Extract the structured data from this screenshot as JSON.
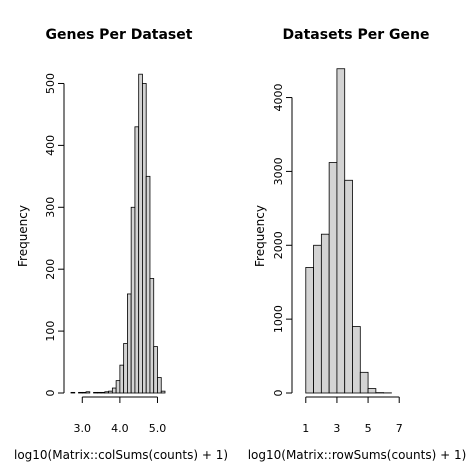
{
  "chart_data": [
    {
      "type": "bar",
      "title": "Genes Per Dataset",
      "xlabel": "log10(Matrix::colSums(counts) + 1)",
      "ylabel": "Frequency",
      "xlim": [
        2.7,
        5.2
      ],
      "ylim": [
        0,
        525
      ],
      "x_ticks": [
        "3.0",
        "4.0",
        "5.0"
      ],
      "y_ticks": [
        "0",
        "100",
        "200",
        "300",
        "400",
        "500"
      ],
      "bin_width": 0.1,
      "bins": [
        {
          "start": 2.7,
          "count": 1
        },
        {
          "start": 2.8,
          "count": 0
        },
        {
          "start": 2.9,
          "count": 1
        },
        {
          "start": 3.0,
          "count": 1
        },
        {
          "start": 3.1,
          "count": 2
        },
        {
          "start": 3.2,
          "count": 0
        },
        {
          "start": 3.3,
          "count": 1
        },
        {
          "start": 3.4,
          "count": 1
        },
        {
          "start": 3.5,
          "count": 1
        },
        {
          "start": 3.6,
          "count": 2
        },
        {
          "start": 3.7,
          "count": 3
        },
        {
          "start": 3.8,
          "count": 8
        },
        {
          "start": 3.9,
          "count": 20
        },
        {
          "start": 4.0,
          "count": 45
        },
        {
          "start": 4.1,
          "count": 80
        },
        {
          "start": 4.2,
          "count": 160
        },
        {
          "start": 4.3,
          "count": 300
        },
        {
          "start": 4.4,
          "count": 430
        },
        {
          "start": 4.5,
          "count": 515
        },
        {
          "start": 4.6,
          "count": 500
        },
        {
          "start": 4.7,
          "count": 350
        },
        {
          "start": 4.8,
          "count": 185
        },
        {
          "start": 4.9,
          "count": 75
        },
        {
          "start": 5.0,
          "count": 25
        },
        {
          "start": 5.1,
          "count": 3
        }
      ]
    },
    {
      "type": "bar",
      "title": "Datasets Per Gene",
      "xlabel": "log10(Matrix::rowSums(counts) + 1)",
      "ylabel": "Frequency",
      "xlim": [
        0.5,
        7.5
      ],
      "ylim": [
        0,
        4400
      ],
      "x_ticks": [
        "1",
        "3",
        "5",
        "7"
      ],
      "y_ticks": [
        "0",
        "1000",
        "2000",
        "3000",
        "4000"
      ],
      "bin_width": 0.5,
      "bins": [
        {
          "start": 0.5,
          "count": 0
        },
        {
          "start": 1.0,
          "count": 1700
        },
        {
          "start": 1.5,
          "count": 2000
        },
        {
          "start": 2.0,
          "count": 2150
        },
        {
          "start": 2.5,
          "count": 3120
        },
        {
          "start": 3.0,
          "count": 4390
        },
        {
          "start": 3.5,
          "count": 2880
        },
        {
          "start": 4.0,
          "count": 900
        },
        {
          "start": 4.5,
          "count": 280
        },
        {
          "start": 5.0,
          "count": 60
        },
        {
          "start": 5.5,
          "count": 5
        },
        {
          "start": 6.0,
          "count": 2
        }
      ]
    }
  ]
}
